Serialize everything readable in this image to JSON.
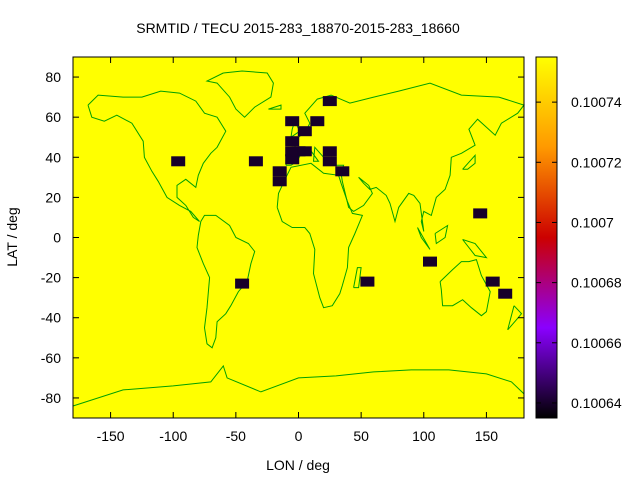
{
  "chart_data": {
    "type": "heatmap",
    "title": "SRMTID / TECU 2015-283_18870-2015-283_18660",
    "xlabel": "LON / deg",
    "ylabel": "LAT / deg",
    "xlim": [
      -180,
      180
    ],
    "ylim": [
      -90,
      90
    ],
    "xticks": [
      -150,
      -100,
      -50,
      0,
      50,
      100,
      150
    ],
    "yticks": [
      -80,
      -60,
      -40,
      -20,
      0,
      20,
      40,
      60,
      80
    ],
    "colorbar": {
      "range": [
        0.100635,
        0.100755
      ],
      "ticks": [
        "0.10064",
        "0.10066",
        "0.10068",
        "0.1007",
        "0.10072",
        "0.10074"
      ],
      "colormap": [
        "#000000",
        "#8a00ff",
        "#cc0000",
        "#ff9900",
        "#ffff00"
      ]
    },
    "background_value": 0.100755,
    "background_color": "#ffff00",
    "land_outline_color": "#00a000",
    "stations": [
      {
        "lon": -96,
        "lat": 38,
        "value": 0.10064
      },
      {
        "lon": -34,
        "lat": 38,
        "value": 0.10064
      },
      {
        "lon": -15,
        "lat": 33,
        "value": 0.10064
      },
      {
        "lon": -15,
        "lat": 28,
        "value": 0.10064
      },
      {
        "lon": -5,
        "lat": 58,
        "value": 0.10064
      },
      {
        "lon": -5,
        "lat": 48,
        "value": 0.10064
      },
      {
        "lon": -5,
        "lat": 43,
        "value": 0.10064
      },
      {
        "lon": -5,
        "lat": 39,
        "value": 0.10064
      },
      {
        "lon": 0,
        "lat": 43,
        "value": 0.10064
      },
      {
        "lon": 5,
        "lat": 53,
        "value": 0.10064
      },
      {
        "lon": 5,
        "lat": 43,
        "value": 0.10064
      },
      {
        "lon": 15,
        "lat": 58,
        "value": 0.10064
      },
      {
        "lon": 25,
        "lat": 68,
        "value": 0.10064
      },
      {
        "lon": 25,
        "lat": 43,
        "value": 0.10064
      },
      {
        "lon": 25,
        "lat": 38,
        "value": 0.10064
      },
      {
        "lon": 35,
        "lat": 33,
        "value": 0.10064
      },
      {
        "lon": 55,
        "lat": -22,
        "value": 0.10064
      },
      {
        "lon": 105,
        "lat": -12,
        "value": 0.10064
      },
      {
        "lon": 145,
        "lat": 12,
        "value": 0.10064
      },
      {
        "lon": 155,
        "lat": -22,
        "value": 0.10064
      },
      {
        "lon": 165,
        "lat": -28,
        "value": 0.10064
      },
      {
        "lon": -45,
        "lat": -23,
        "value": 0.10064
      }
    ]
  }
}
